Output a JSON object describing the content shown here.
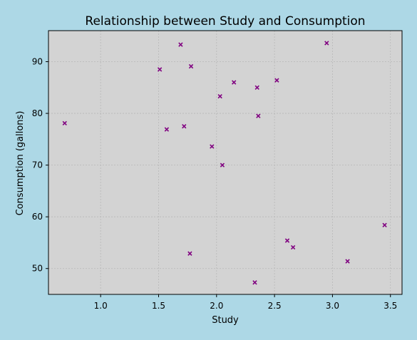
{
  "colors": {
    "figure_background": "#add8e6",
    "plot_background": "#d3d3d3",
    "marker": "#800080",
    "grid": "#b8b8b8"
  },
  "chart_data": {
    "type": "scatter",
    "title": "Relationship between Study and Consumption",
    "xlabel": "Study",
    "ylabel": "Consumption (gallons)",
    "xlim": [
      0.55,
      3.6
    ],
    "ylim": [
      45.0,
      96.0
    ],
    "x_ticks": [
      1.0,
      1.5,
      2.0,
      2.5,
      3.0,
      3.5
    ],
    "x_tick_labels": [
      "1.0",
      "1.5",
      "2.0",
      "2.5",
      "3.0",
      "3.5"
    ],
    "y_ticks": [
      50,
      60,
      70,
      80,
      90
    ],
    "y_tick_labels": [
      "50",
      "60",
      "70",
      "80",
      "90"
    ],
    "grid": true,
    "marker": "x",
    "points": [
      {
        "x": 0.69,
        "y": 78.1
      },
      {
        "x": 1.51,
        "y": 88.5
      },
      {
        "x": 1.57,
        "y": 76.9
      },
      {
        "x": 1.69,
        "y": 93.3
      },
      {
        "x": 1.72,
        "y": 77.5
      },
      {
        "x": 1.77,
        "y": 52.9
      },
      {
        "x": 1.78,
        "y": 89.1
      },
      {
        "x": 1.96,
        "y": 73.6
      },
      {
        "x": 2.03,
        "y": 83.3
      },
      {
        "x": 2.05,
        "y": 70.0
      },
      {
        "x": 2.15,
        "y": 86.0
      },
      {
        "x": 2.33,
        "y": 47.3
      },
      {
        "x": 2.35,
        "y": 85.0
      },
      {
        "x": 2.36,
        "y": 79.5
      },
      {
        "x": 2.52,
        "y": 86.4
      },
      {
        "x": 2.61,
        "y": 55.4
      },
      {
        "x": 2.66,
        "y": 54.1
      },
      {
        "x": 2.95,
        "y": 93.6
      },
      {
        "x": 3.13,
        "y": 51.4
      },
      {
        "x": 3.45,
        "y": 58.4
      }
    ]
  }
}
